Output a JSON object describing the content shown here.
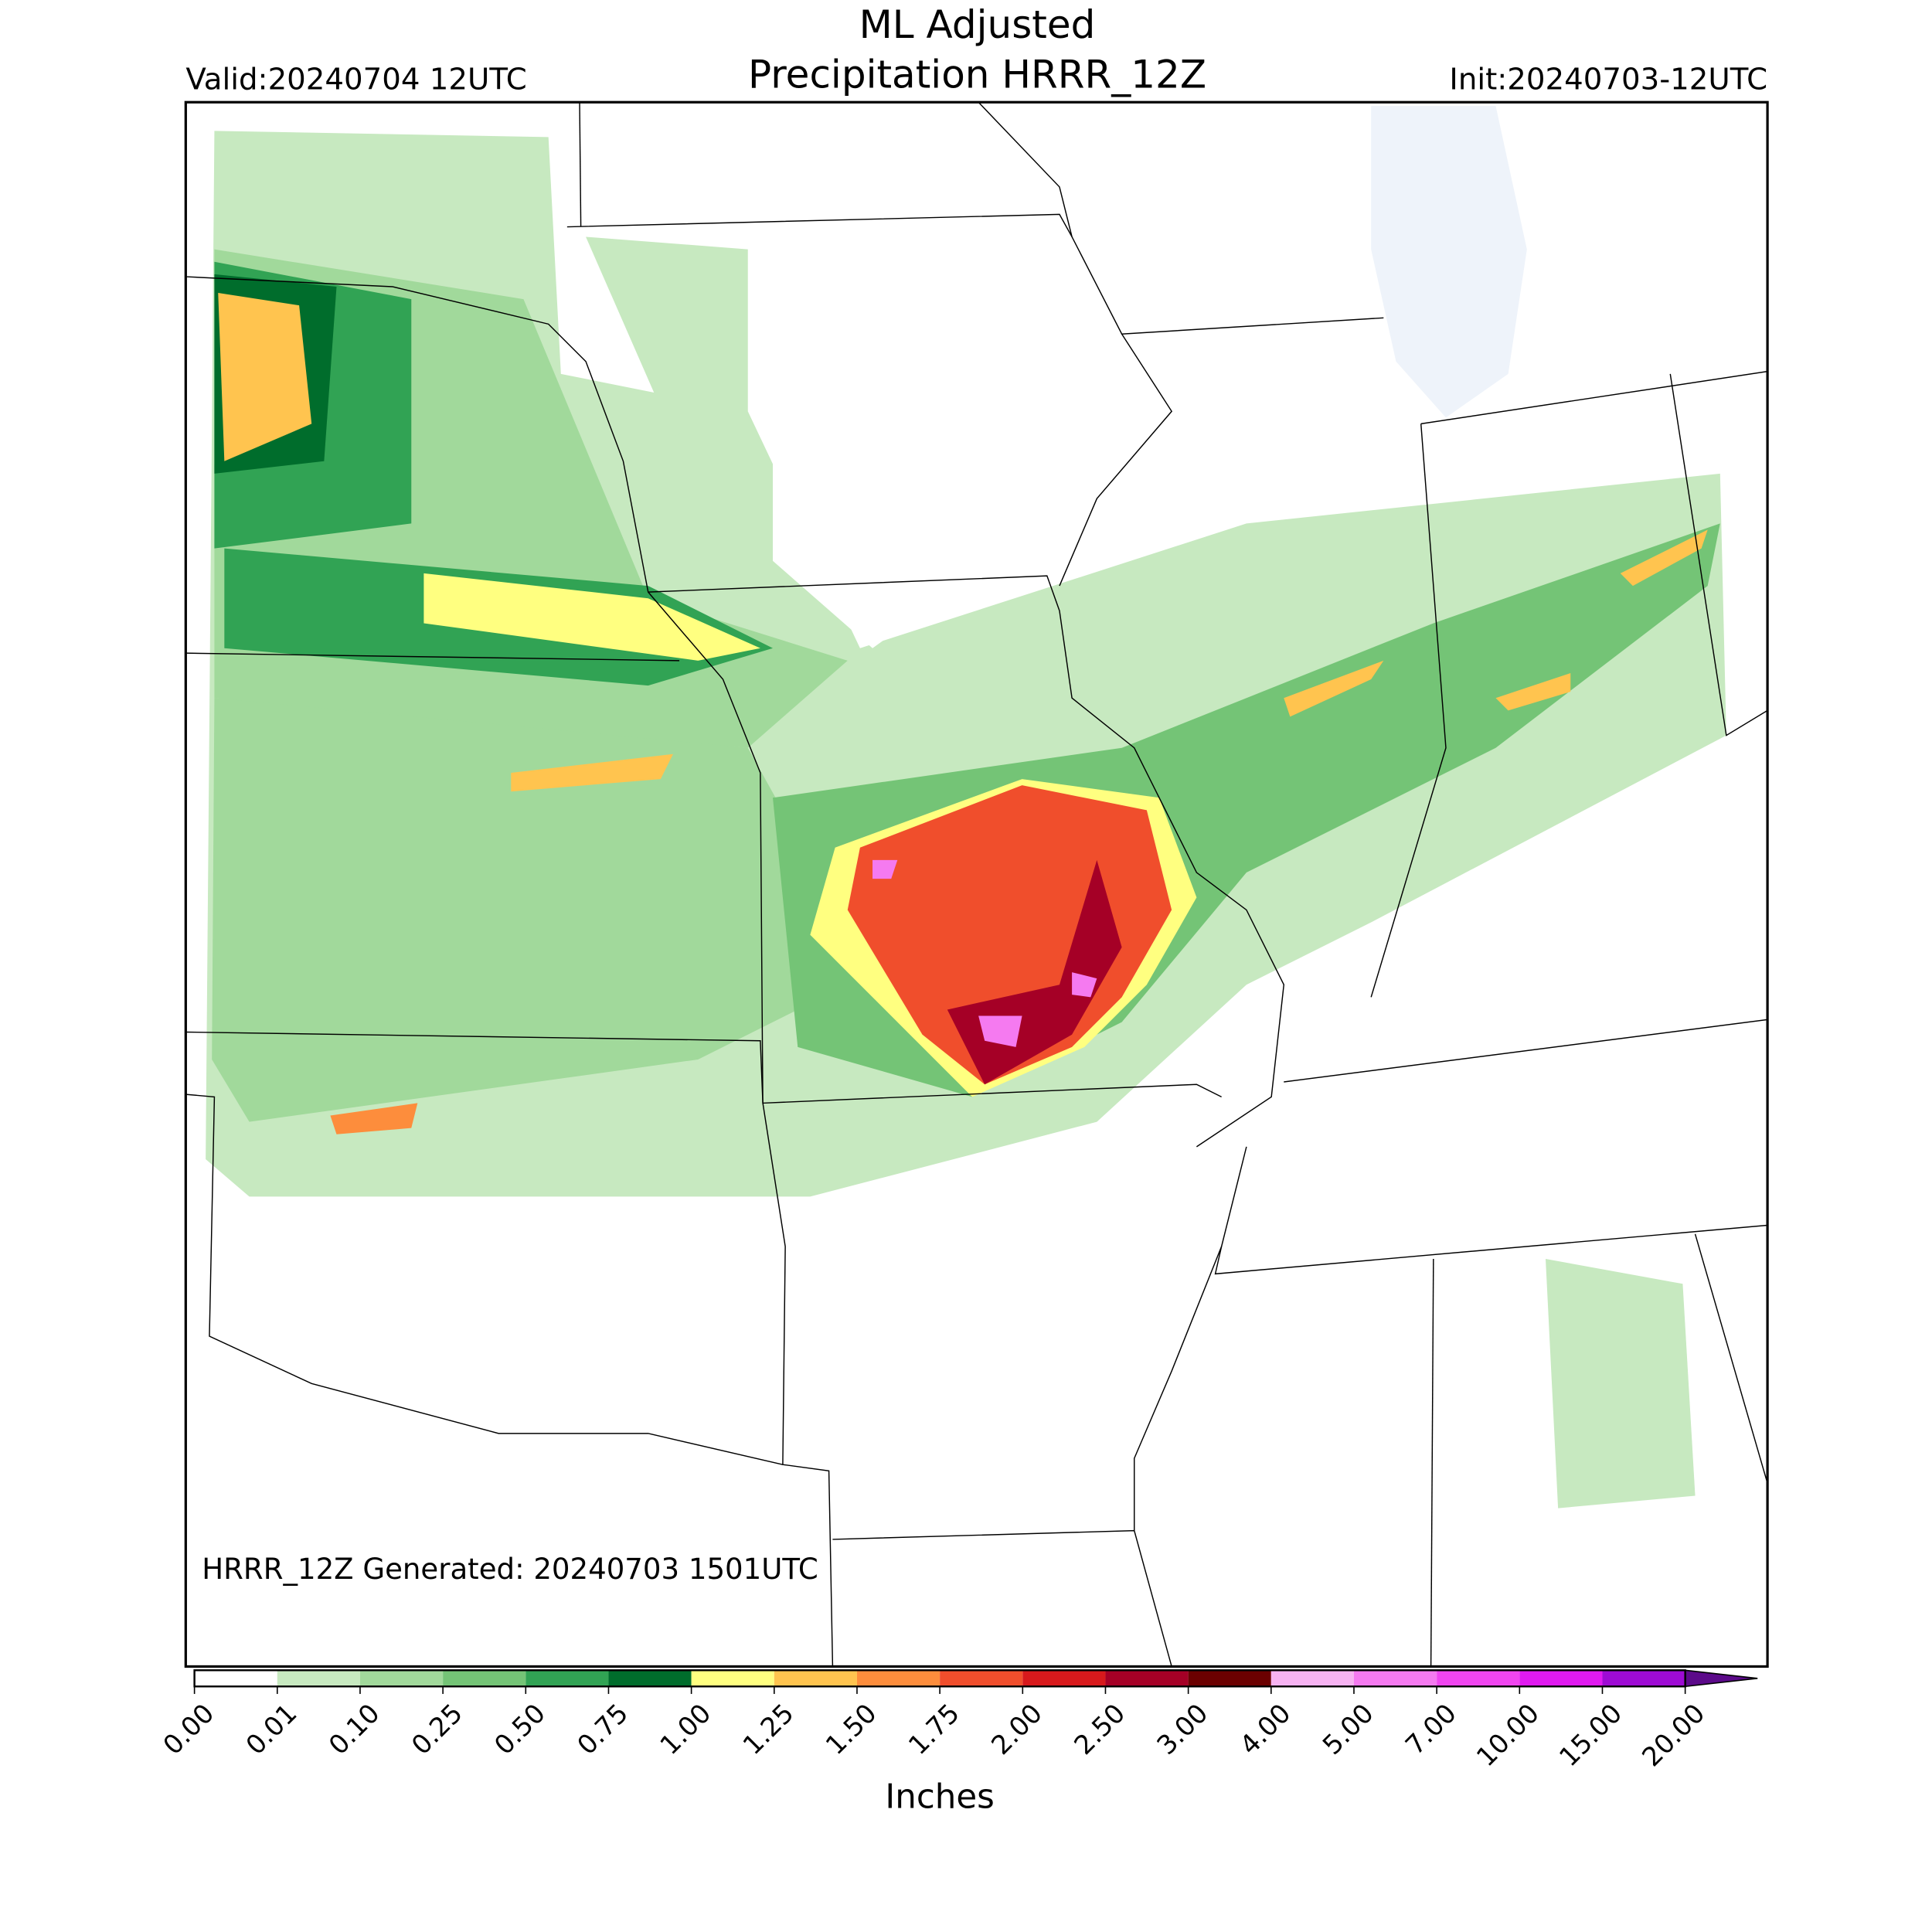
{
  "header": {
    "title_line1": "ML Adjusted",
    "title_line2": "Precipitation HRRR_12Z",
    "valid": "Valid:20240704 12UTC",
    "init": "Init:20240703-12UTC"
  },
  "map": {
    "generated": "HRRR_12Z Generated: 20240703 1501UTC"
  },
  "colorbar": {
    "label": "Inches",
    "ticks": [
      {
        "value": 0,
        "label": "0.00"
      },
      0.01,
      {
        "value": 0.1,
        "label": "0.10"
      },
      0.25,
      {
        "value": 0.5,
        "label": "0.50"
      },
      0.75,
      {
        "value": 1,
        "label": "1.00"
      },
      1.25,
      {
        "value": 1.5,
        "label": "1.50"
      },
      1.75,
      {
        "value": 2,
        "label": "2.00"
      },
      {
        "value": 2.5,
        "label": "2.50"
      },
      {
        "value": 3,
        "label": "3.00"
      },
      {
        "value": 4,
        "label": "4.00"
      },
      {
        "value": 5,
        "label": "5.00"
      },
      {
        "value": 7,
        "label": "7.00"
      },
      {
        "value": 10,
        "label": "10.00"
      },
      {
        "value": 15,
        "label": "15.00"
      },
      {
        "value": 20,
        "label": "20.00"
      }
    ],
    "colors": [
      "#ffffff",
      "#c7e9c0",
      "#a1d99b",
      "#74c476",
      "#31a354",
      "#006d2c",
      "#ffff80",
      "#ffc44f",
      "#fd8d3c",
      "#f04e2c",
      "#d7191c",
      "#a50026",
      "#6b0000",
      "#f7b3f2",
      "#f57af0",
      "#f045f0",
      "#e01af0",
      "#9e0bd4"
    ],
    "extend_color": "#5c0a8a"
  }
}
